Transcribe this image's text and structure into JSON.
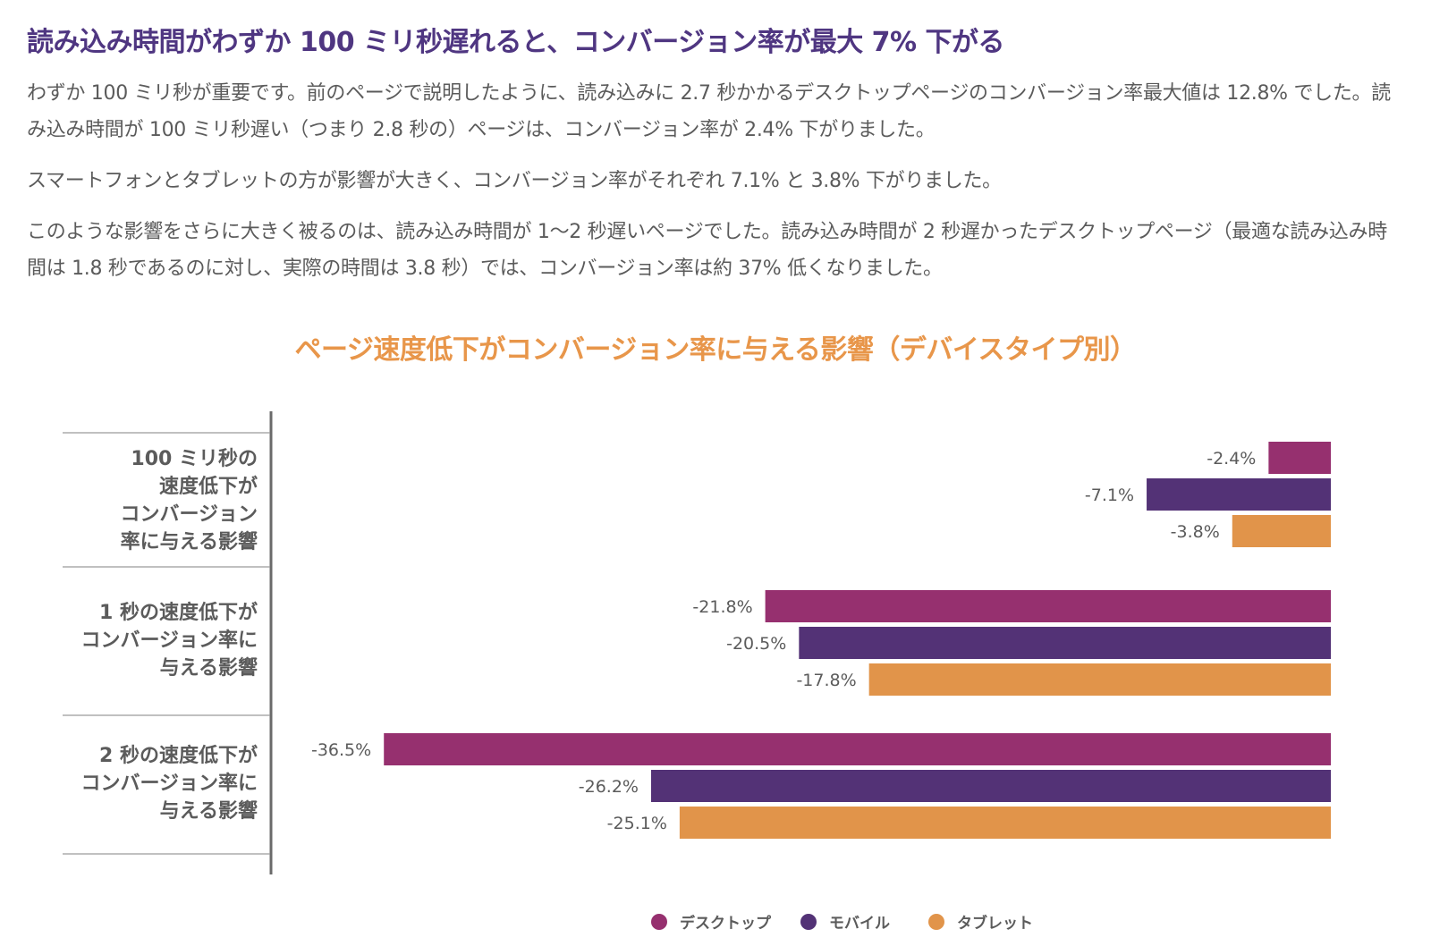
{
  "headline": "読み込み時間がわずか 100 ミリ秒遅れると、コンバージョン率が最大 7% 下がる",
  "paragraphs": [
    "わずか 100 ミリ秒が重要です。前のページで説明したように、読み込みに 2.7 秒かかるデスクトップページのコンバージョン率最大値は 12.8% でした。読み込み時間が 100 ミリ秒遅い（つまり 2.8 秒の）ページは、コンバージョン率が 2.4% 下がりました。",
    "スマートフォンとタブレットの方が影響が大きく、コンバージョン率がそれぞれ 7.1% と 3.8% 下がりました。",
    "このような影響をさらに大きく被るのは、読み込み時間が 1〜2 秒遅いページでした。読み込み時間が 2 秒遅かったデスクトップページ（最適な読み込み時間は 1.8 秒であるのに対し、実際の時間は 3.8 秒）では、コンバージョン率は約 37% 低くなりました。"
  ],
  "colors": {
    "desktop": "#96306f",
    "mobile": "#533276",
    "tablet": "#e1944a",
    "headline": "#4f3681",
    "chart_title": "#e8964a"
  },
  "chart_data": {
    "type": "bar",
    "orientation": "horizontal",
    "title": "ページ速度低下がコンバージョン率に与える影響（デバイスタイプ別）",
    "categories": [
      "100 ミリ秒の速度低下がコンバージョン率に与える影響",
      "1 秒の速度低下がコンバージョン率に与える影響",
      "2 秒の速度低下がコンバージョン率に与える影響"
    ],
    "category_lines": [
      [
        "100 ミリ秒の",
        "速度低下が",
        "コンバージョン",
        "率に与える影響"
      ],
      [
        "1 秒の速度低下が",
        "コンバージョン率に",
        "与える影響"
      ],
      [
        "2 秒の速度低下が",
        "コンバージョン率に",
        "与える影響"
      ]
    ],
    "series": [
      {
        "name": "デスクトップ",
        "key": "desktop",
        "values": [
          -2.4,
          -21.8,
          -36.5
        ],
        "labels": [
          "-2.4%",
          "-21.8%",
          "-36.5%"
        ]
      },
      {
        "name": "モバイル",
        "key": "mobile",
        "values": [
          -7.1,
          -20.5,
          -26.2
        ],
        "labels": [
          "-7.1%",
          "-20.5%",
          "-26.2%"
        ]
      },
      {
        "name": "タブレット",
        "key": "tablet",
        "values": [
          -3.8,
          -17.8,
          -25.1
        ],
        "labels": [
          "-3.8%",
          "-17.8%",
          "-25.1%"
        ]
      }
    ],
    "xlim": [
      -40,
      0
    ],
    "value_unit": "%",
    "legend_position": "bottom-center"
  }
}
